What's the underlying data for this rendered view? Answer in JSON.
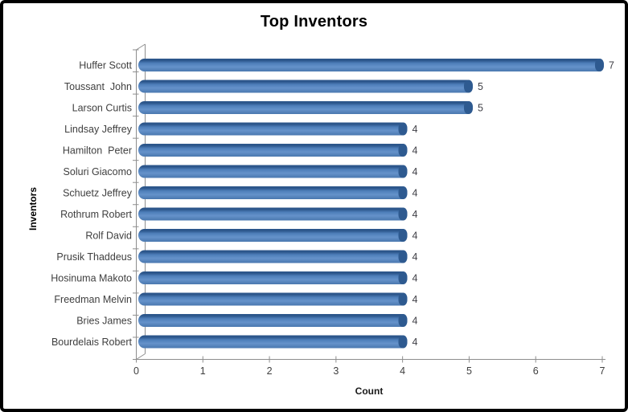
{
  "chart_data": {
    "type": "bar",
    "orientation": "horizontal",
    "style_3d": true,
    "title": "Top Inventors",
    "xlabel": "Count",
    "ylabel": "Inventors",
    "categories": [
      "Huffer Scott",
      "Toussant  John",
      "Larson Curtis",
      "Lindsay Jeffrey",
      "Hamilton  Peter",
      "Soluri Giacomo",
      "Schuetz Jeffrey",
      "Rothrum Robert",
      "Rolf David",
      "Prusik Thaddeus",
      "Hosinuma Makoto",
      "Freedman Melvin",
      "Bries James",
      "Bourdelais Robert"
    ],
    "values": [
      7,
      5,
      5,
      4,
      4,
      4,
      4,
      4,
      4,
      4,
      4,
      4,
      4,
      4
    ],
    "data_labels": [
      "7",
      "5",
      "5",
      "4",
      "4",
      "4",
      "4",
      "4",
      "4",
      "4",
      "4",
      "4",
      "4",
      "4"
    ],
    "xlim": [
      0,
      7
    ],
    "xticks": [
      "0",
      "1",
      "2",
      "3",
      "4",
      "5",
      "6",
      "7"
    ],
    "grid": false,
    "legend": false,
    "colors": {
      "bar_fill": "#4F81BD",
      "bar_gradient": [
        "#2C568B",
        "#2C568B",
        "#4E7FBA",
        "#6592CA",
        "#4A78AF"
      ],
      "bar_cap": "#2E5A90",
      "axis_line": "#8E8E8E",
      "tick_label": "#3F3F3F",
      "data_label": "#3F3F46",
      "title_color": "#000000",
      "background": "#FFFFFF",
      "frame_border": "#000000"
    }
  }
}
